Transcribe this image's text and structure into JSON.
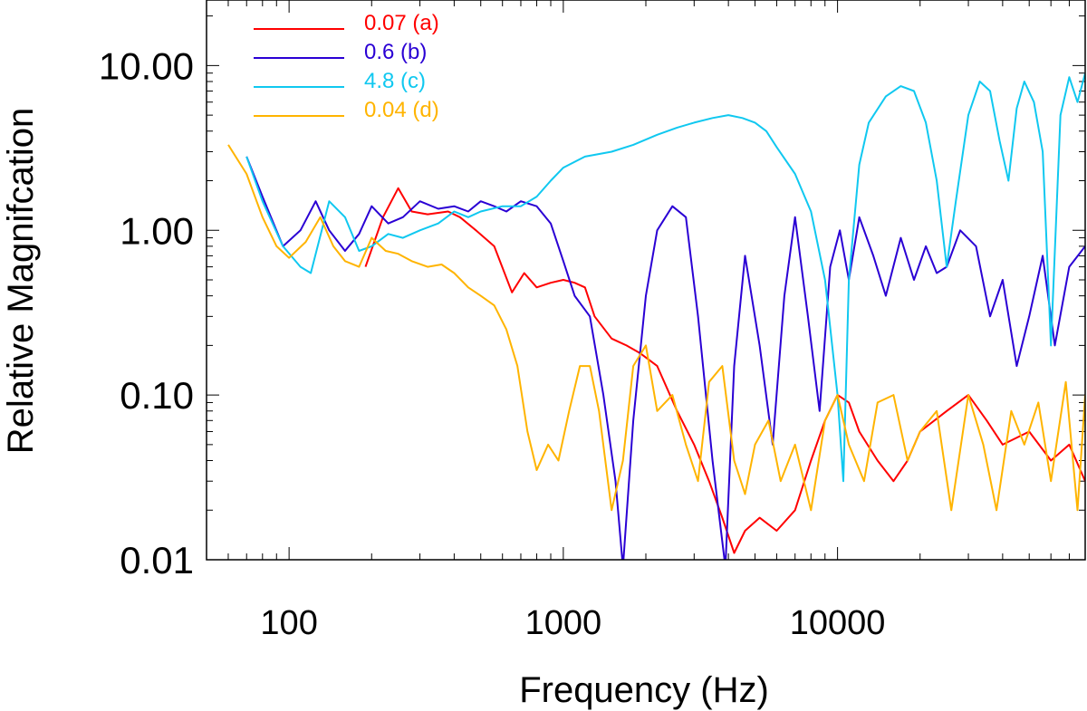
{
  "chart_data": {
    "type": "line",
    "xlabel": "Frequency (Hz)",
    "ylabel": "Relative Magnifcation",
    "xscale": "log",
    "yscale": "log",
    "xlim": [
      50,
      80000
    ],
    "ylim": [
      0.01,
      25
    ],
    "x_tick_labels": [
      "100",
      "1000",
      "10000"
    ],
    "x_ticks": [
      100,
      1000,
      10000
    ],
    "y_tick_labels": [
      "0.01",
      "0.10",
      "1.00",
      "10.00"
    ],
    "y_ticks": [
      0.01,
      0.1,
      1,
      10
    ],
    "legend_position": "top-left",
    "series": [
      {
        "name": "0.07 (a)",
        "color": "#ff0000",
        "x": [
          190,
          220,
          250,
          280,
          320,
          380,
          420,
          480,
          560,
          650,
          720,
          800,
          900,
          1000,
          1100,
          1200,
          1300,
          1500,
          1700,
          1900,
          2200,
          2600,
          3000,
          3400,
          3800,
          4200,
          4600,
          5200,
          6000,
          7000,
          8000,
          9000,
          10000,
          11000,
          12000,
          14000,
          16000,
          18000,
          20000,
          25000,
          30000,
          35000,
          40000,
          50000,
          60000,
          70000,
          80000
        ],
        "y": [
          0.6,
          1.2,
          1.8,
          1.3,
          1.25,
          1.3,
          1.2,
          1.0,
          0.8,
          0.42,
          0.55,
          0.45,
          0.48,
          0.5,
          0.48,
          0.45,
          0.3,
          0.22,
          0.2,
          0.18,
          0.15,
          0.08,
          0.05,
          0.03,
          0.018,
          0.011,
          0.015,
          0.018,
          0.015,
          0.02,
          0.04,
          0.07,
          0.1,
          0.09,
          0.06,
          0.04,
          0.03,
          0.04,
          0.06,
          0.08,
          0.1,
          0.07,
          0.05,
          0.06,
          0.04,
          0.05,
          0.03
        ]
      },
      {
        "name": "0.6 (b)",
        "color": "#2a00d4",
        "x": [
          70,
          80,
          95,
          110,
          125,
          140,
          160,
          180,
          200,
          230,
          260,
          300,
          350,
          400,
          450,
          500,
          560,
          620,
          700,
          800,
          900,
          1000,
          1100,
          1250,
          1400,
          1550,
          1650,
          1800,
          2000,
          2200,
          2500,
          2800,
          3100,
          3500,
          3900,
          4200,
          4600,
          5200,
          5800,
          6400,
          7000,
          7800,
          8600,
          9400,
          10200,
          11000,
          12000,
          13500,
          15000,
          17000,
          19000,
          21000,
          23000,
          25000,
          28000,
          32000,
          36000,
          40000,
          45000,
          50000,
          56000,
          62000,
          70000,
          80000
        ],
        "y": [
          2.8,
          1.6,
          0.8,
          1.0,
          1.5,
          1.0,
          0.75,
          0.95,
          1.4,
          1.1,
          1.2,
          1.5,
          1.35,
          1.4,
          1.3,
          1.5,
          1.4,
          1.3,
          1.5,
          1.4,
          1.1,
          0.65,
          0.4,
          0.3,
          0.1,
          0.03,
          0.009,
          0.07,
          0.4,
          1.0,
          1.4,
          1.2,
          0.3,
          0.04,
          0.009,
          0.15,
          0.7,
          0.2,
          0.05,
          0.4,
          1.2,
          0.3,
          0.08,
          0.6,
          1.0,
          0.5,
          1.2,
          0.7,
          0.4,
          0.9,
          0.5,
          0.8,
          0.55,
          0.6,
          1.0,
          0.8,
          0.3,
          0.5,
          0.15,
          0.3,
          0.7,
          0.2,
          0.6,
          0.8
        ]
      },
      {
        "name": "4.8 (c)",
        "color": "#10c8f0",
        "x": [
          70,
          80,
          95,
          110,
          120,
          140,
          160,
          180,
          200,
          230,
          260,
          300,
          350,
          400,
          450,
          500,
          600,
          700,
          800,
          900,
          1000,
          1200,
          1500,
          1800,
          2200,
          2600,
          3000,
          3500,
          4000,
          4500,
          5000,
          5500,
          6000,
          7000,
          8000,
          9000,
          10000,
          10500,
          11000,
          12000,
          13000,
          15000,
          17000,
          19000,
          21000,
          23000,
          25000,
          27000,
          30000,
          33000,
          36000,
          39000,
          42000,
          45000,
          48000,
          52000,
          56000,
          60000,
          65000,
          70000,
          75000,
          80000
        ],
        "y": [
          2.8,
          1.5,
          0.8,
          0.6,
          0.55,
          1.5,
          1.2,
          0.75,
          0.8,
          0.95,
          0.9,
          1.0,
          1.1,
          1.3,
          1.2,
          1.3,
          1.4,
          1.4,
          1.6,
          2.0,
          2.4,
          2.8,
          3.0,
          3.3,
          3.8,
          4.2,
          4.5,
          4.8,
          5.0,
          4.8,
          4.5,
          4.0,
          3.2,
          2.2,
          1.3,
          0.5,
          0.1,
          0.03,
          0.5,
          2.5,
          4.5,
          6.5,
          7.5,
          7.0,
          4.5,
          2.0,
          0.6,
          1.5,
          5.0,
          8.0,
          7.0,
          3.5,
          2.0,
          5.5,
          8.0,
          6.0,
          3.0,
          0.2,
          5.0,
          8.5,
          6.0,
          9.0
        ]
      },
      {
        "name": "0.04 (d)",
        "color": "#ffb400",
        "x": [
          60,
          70,
          80,
          90,
          100,
          115,
          130,
          145,
          160,
          180,
          200,
          225,
          250,
          280,
          320,
          360,
          400,
          450,
          500,
          560,
          620,
          680,
          740,
          800,
          880,
          960,
          1050,
          1150,
          1250,
          1350,
          1500,
          1650,
          1800,
          2000,
          2200,
          2500,
          2800,
          3100,
          3400,
          3800,
          4200,
          4600,
          5000,
          5600,
          6200,
          7000,
          8000,
          9000,
          10000,
          11000,
          12500,
          14000,
          16000,
          18000,
          20000,
          23000,
          26000,
          30000,
          34000,
          38000,
          43000,
          48000,
          54000,
          60000,
          68000,
          75000,
          80000
        ],
        "y": [
          3.3,
          2.2,
          1.2,
          0.8,
          0.68,
          0.85,
          1.2,
          0.8,
          0.65,
          0.6,
          0.9,
          0.75,
          0.72,
          0.65,
          0.6,
          0.62,
          0.55,
          0.45,
          0.4,
          0.35,
          0.25,
          0.15,
          0.06,
          0.035,
          0.05,
          0.04,
          0.08,
          0.15,
          0.15,
          0.08,
          0.02,
          0.04,
          0.15,
          0.2,
          0.08,
          0.1,
          0.05,
          0.03,
          0.12,
          0.15,
          0.04,
          0.025,
          0.05,
          0.07,
          0.03,
          0.05,
          0.02,
          0.07,
          0.1,
          0.05,
          0.03,
          0.09,
          0.1,
          0.04,
          0.06,
          0.08,
          0.02,
          0.1,
          0.05,
          0.02,
          0.08,
          0.05,
          0.09,
          0.03,
          0.12,
          0.02,
          0.1
        ]
      }
    ]
  }
}
